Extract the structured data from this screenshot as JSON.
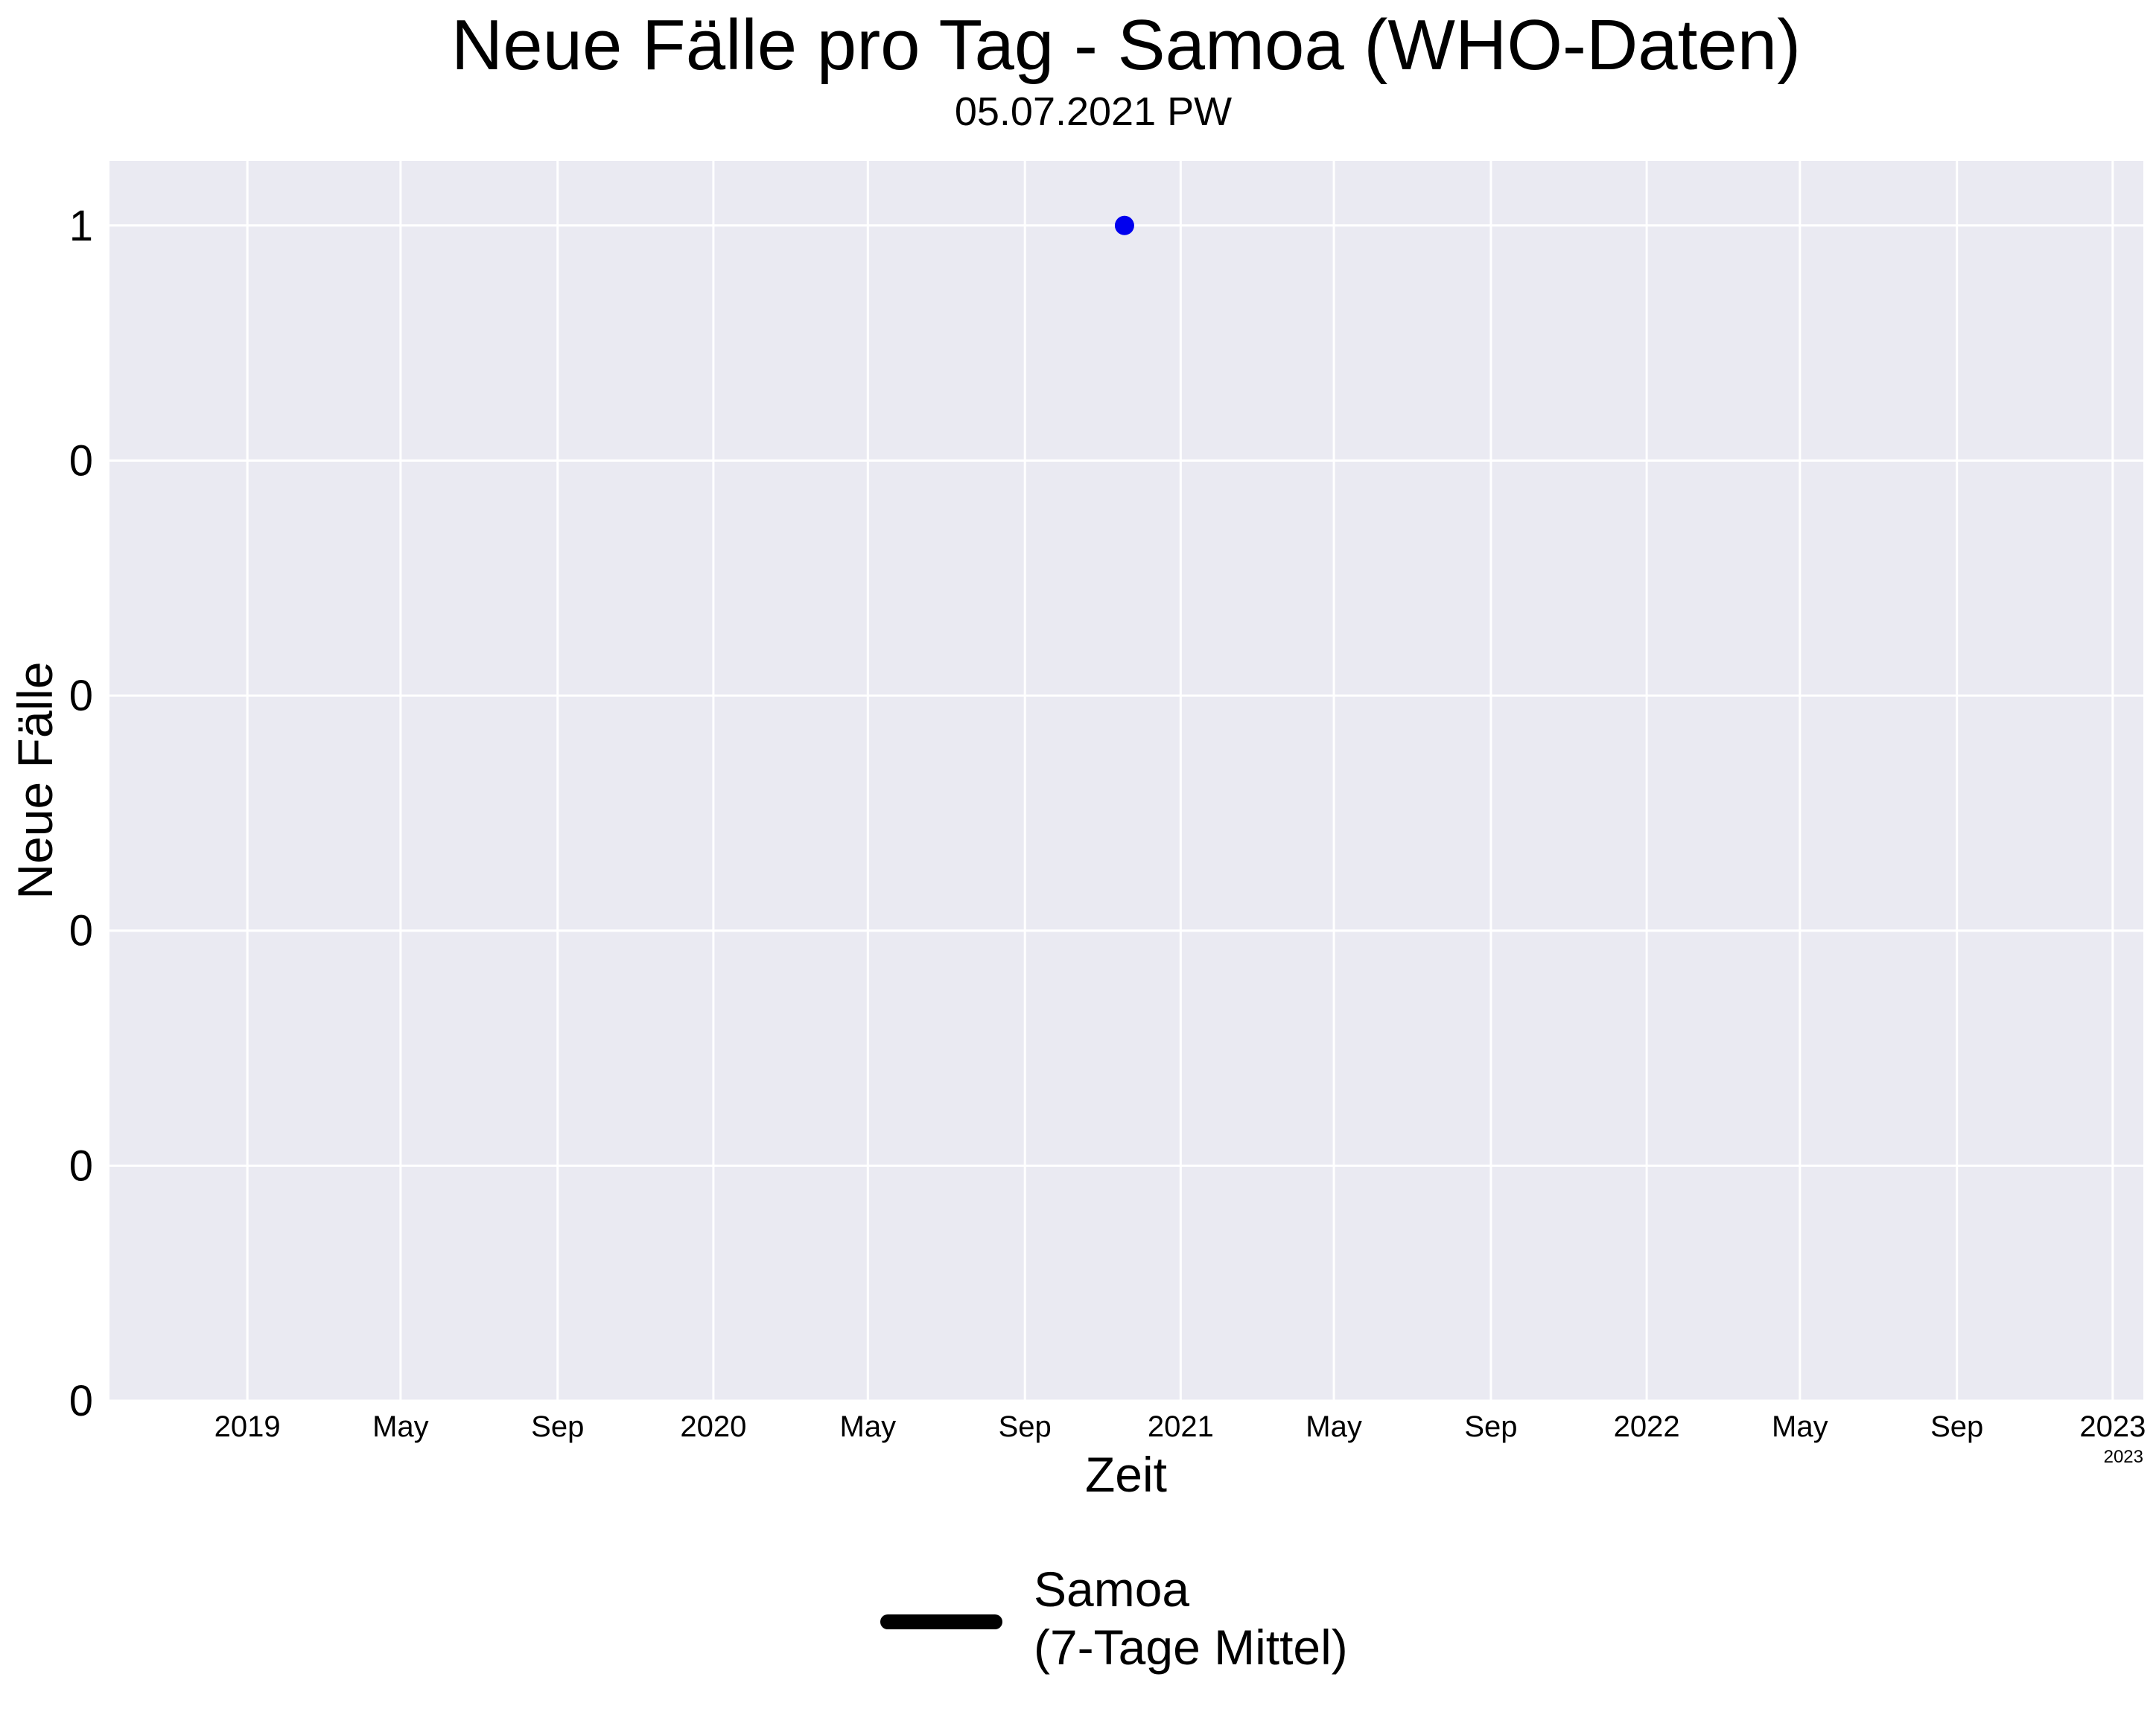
{
  "chart_data": {
    "type": "line",
    "title": "Neue Fälle pro Tag - Samoa (WHO-Daten)",
    "subtitle": "05.07.2021 PW",
    "xlabel": "Zeit",
    "ylabel": "Neue Fälle",
    "x_range": [
      "2018-09-15",
      "2023-01-25"
    ],
    "x_ticks": [
      "2019-01-01",
      "2019-05-01",
      "2019-09-01",
      "2020-01-01",
      "2020-05-01",
      "2020-09-01",
      "2021-01-01",
      "2021-05-01",
      "2021-09-01",
      "2022-01-01",
      "2022-05-01",
      "2022-09-01",
      "2023-01-01"
    ],
    "x_tick_labels": [
      "2019",
      "May",
      "Sep",
      "2020",
      "May",
      "Sep",
      "2021",
      "May",
      "Sep",
      "2022",
      "May",
      "Sep",
      "2023"
    ],
    "x_offset_label": "2023",
    "ylim": [
      0,
      1.055
    ],
    "y_ticks": [
      0,
      0.2,
      0.4,
      0.6,
      0.8,
      1.0
    ],
    "y_tick_labels": [
      "0",
      "0",
      "0",
      "0",
      "0",
      "1"
    ],
    "grid": true,
    "series": [
      {
        "name": "Samoa (7-Tage Mittel)",
        "color": "#000000",
        "points": [
          {
            "x": "2020-11-18",
            "y": 1,
            "marker_color": "#0000ee"
          }
        ]
      }
    ],
    "legend": {
      "position": "bottom-center",
      "line1": "Samoa",
      "line2": "(7-Tage Mittel)",
      "line_color": "#000000"
    },
    "colors": {
      "plot_background": "#eaeaf2",
      "grid": "#ffffff",
      "marker": "#0000ee"
    }
  }
}
